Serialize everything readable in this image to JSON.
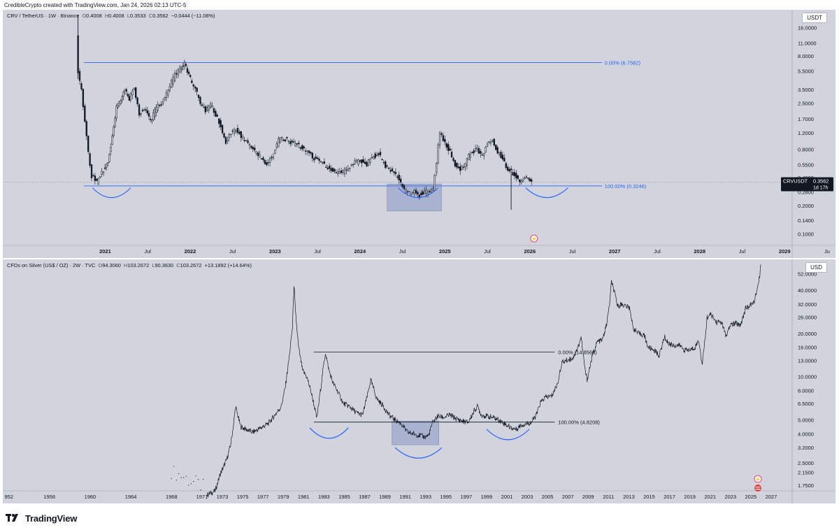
{
  "header": {
    "attribution": "CredibleCrypto created with TradingView.com, Jan 24, 2026 02:13 UTC-5"
  },
  "brand": {
    "name": "TradingView",
    "icon": "tradingview-logo-icon"
  },
  "colors": {
    "background": "#d1d4dc",
    "candles": "#131722",
    "fib_line_top": "#2962ff",
    "arc": "#2962ff",
    "box_fill": "#9ba8cc",
    "price_tag": "#131722"
  },
  "chart_data": [
    {
      "type": "candlestick",
      "symbol": "CRV / TetherUS · 1W · Binance",
      "ohlc": {
        "O": "0.4008",
        "H": "0.4008",
        "L": "0.3533",
        "C": "0.3562",
        "change": "−0.0444 (−11.08%)"
      },
      "currency": "USDT",
      "scale": "log",
      "y_ticks": [
        "16.0000",
        "11.0000",
        "8.0000",
        "5.5000",
        "3.5000",
        "2.5000",
        "1.7000",
        "1.2000",
        "0.8000",
        "0.5500",
        "0.4000",
        "0.2800",
        "0.2000",
        "0.1400",
        "0.1000"
      ],
      "x_ticks": [
        "2021",
        "Jul",
        "2022",
        "Jul",
        "2023",
        "Jul",
        "2024",
        "Jul",
        "2025",
        "Jul",
        "2026",
        "Jul",
        "2027",
        "Jul",
        "2028",
        "Jul",
        "2029",
        "Ju"
      ],
      "last_price": {
        "label": "CRVUSDT",
        "value": "0.3562",
        "countdown": "1d 17h"
      },
      "fib_levels": [
        {
          "label": "0.00% (6.7582)",
          "value": 6.7582
        },
        {
          "label": "100.00% (0.3246)",
          "value": 0.3246
        }
      ],
      "path": [
        [
          2020.68,
          14
        ],
        [
          2020.7,
          5.2
        ],
        [
          2020.74,
          3.5
        ],
        [
          2020.78,
          1.6
        ],
        [
          2020.82,
          0.75
        ],
        [
          2020.86,
          0.42
        ],
        [
          2020.92,
          0.35
        ],
        [
          2020.98,
          0.45
        ],
        [
          2021.05,
          0.6
        ],
        [
          2021.1,
          1.1
        ],
        [
          2021.15,
          2.3
        ],
        [
          2021.2,
          2.8
        ],
        [
          2021.25,
          3.4
        ],
        [
          2021.3,
          2.8
        ],
        [
          2021.36,
          3.5
        ],
        [
          2021.42,
          1.9
        ],
        [
          2021.48,
          2.2
        ],
        [
          2021.55,
          1.6
        ],
        [
          2021.62,
          2.2
        ],
        [
          2021.7,
          2.6
        ],
        [
          2021.78,
          3.8
        ],
        [
          2021.84,
          5.0
        ],
        [
          2021.9,
          6.0
        ],
        [
          2021.95,
          6.6
        ],
        [
          2022.02,
          4.5
        ],
        [
          2022.08,
          3.6
        ],
        [
          2022.14,
          2.5
        ],
        [
          2022.2,
          2.1
        ],
        [
          2022.26,
          2.4
        ],
        [
          2022.32,
          1.9
        ],
        [
          2022.38,
          1.4
        ],
        [
          2022.44,
          0.95
        ],
        [
          2022.5,
          1.2
        ],
        [
          2022.56,
          1.35
        ],
        [
          2022.62,
          1.1
        ],
        [
          2022.7,
          0.9
        ],
        [
          2022.78,
          0.75
        ],
        [
          2022.86,
          0.65
        ],
        [
          2022.92,
          0.55
        ],
        [
          2023.0,
          0.7
        ],
        [
          2023.06,
          1.0
        ],
        [
          2023.12,
          1.05
        ],
        [
          2023.2,
          0.95
        ],
        [
          2023.28,
          0.9
        ],
        [
          2023.36,
          0.8
        ],
        [
          2023.44,
          0.7
        ],
        [
          2023.52,
          0.6
        ],
        [
          2023.6,
          0.55
        ],
        [
          2023.66,
          0.5
        ],
        [
          2023.72,
          0.45
        ],
        [
          2023.8,
          0.45
        ],
        [
          2023.88,
          0.5
        ],
        [
          2023.96,
          0.58
        ],
        [
          2024.04,
          0.6
        ],
        [
          2024.1,
          0.56
        ],
        [
          2024.18,
          0.68
        ],
        [
          2024.24,
          0.72
        ],
        [
          2024.32,
          0.52
        ],
        [
          2024.4,
          0.48
        ],
        [
          2024.48,
          0.38
        ],
        [
          2024.54,
          0.29
        ],
        [
          2024.6,
          0.27
        ],
        [
          2024.66,
          0.28
        ],
        [
          2024.72,
          0.26
        ],
        [
          2024.78,
          0.28
        ],
        [
          2024.84,
          0.27
        ],
        [
          2024.88,
          0.3
        ],
        [
          2024.92,
          0.6
        ],
        [
          2024.96,
          1.2
        ],
        [
          2025.02,
          0.95
        ],
        [
          2025.08,
          0.75
        ],
        [
          2025.14,
          0.55
        ],
        [
          2025.2,
          0.48
        ],
        [
          2025.26,
          0.55
        ],
        [
          2025.32,
          0.75
        ],
        [
          2025.4,
          0.8
        ],
        [
          2025.46,
          0.7
        ],
        [
          2025.52,
          0.9
        ],
        [
          2025.58,
          1.0
        ],
        [
          2025.64,
          0.75
        ],
        [
          2025.7,
          0.62
        ],
        [
          2025.76,
          0.5
        ],
        [
          2025.8,
          0.48
        ],
        [
          2025.84,
          0.42
        ],
        [
          2025.88,
          0.38
        ],
        [
          2025.92,
          0.37
        ],
        [
          2025.96,
          0.4
        ],
        [
          2026.0,
          0.4
        ],
        [
          2026.04,
          0.3562
        ]
      ]
    },
    {
      "type": "line",
      "symbol": "CFDs on Silver (US$ / OZ) · 2W · TVC",
      "ohlc": {
        "O": "94.3060",
        "H": "103.2672",
        "L": "90.3630",
        "C": "103.2672",
        "change": "+13.1892 (+14.64%)"
      },
      "currency": "USD",
      "scale": "log",
      "y_ticks": [
        "52.0000",
        "40.0000",
        "32.0000",
        "26.0000",
        "20.0000",
        "16.0000",
        "13.0000",
        "10.0000",
        "8.0000",
        "6.5000",
        "5.0000",
        "4.0000",
        "3.2000",
        "2.5000",
        "2.1500",
        "1.7500"
      ],
      "x_ticks": [
        "952",
        "1956",
        "1960",
        "1964",
        "1968",
        "1971",
        "1973",
        "1975",
        "1977",
        "1979",
        "1981",
        "1983",
        "1985",
        "1987",
        "1989",
        "1991",
        "1993",
        "1995",
        "1997",
        "1999",
        "2001",
        "2003",
        "2005",
        "2007",
        "2009",
        "2011",
        "2013",
        "2015",
        "2017",
        "2019",
        "2021",
        "2023",
        "2025",
        "2027"
      ],
      "fib_levels": [
        {
          "label": "0.00% (14.8565)",
          "value": 14.8565
        },
        {
          "label": "100.00% (4.8208)",
          "value": 4.8208
        }
      ],
      "path": [
        [
          1971.5,
          1.5
        ],
        [
          1972.3,
          1.6
        ],
        [
          1972.8,
          2.1
        ],
        [
          1973.4,
          2.6
        ],
        [
          1973.8,
          3.3
        ],
        [
          1974.1,
          4.6
        ],
        [
          1974.3,
          6.2
        ],
        [
          1974.8,
          4.5
        ],
        [
          1975.3,
          4.3
        ],
        [
          1976.0,
          4.1
        ],
        [
          1976.8,
          4.4
        ],
        [
          1977.5,
          4.7
        ],
        [
          1978.0,
          5.2
        ],
        [
          1978.8,
          6.2
        ],
        [
          1979.2,
          8.5
        ],
        [
          1979.6,
          14
        ],
        [
          1979.9,
          22
        ],
        [
          1980.05,
          44
        ],
        [
          1980.2,
          28
        ],
        [
          1980.5,
          16
        ],
        [
          1980.9,
          11
        ],
        [
          1981.3,
          10
        ],
        [
          1981.7,
          8
        ],
        [
          1982.0,
          6.5
        ],
        [
          1982.3,
          5.1
        ],
        [
          1982.6,
          7.5
        ],
        [
          1982.9,
          11
        ],
        [
          1983.15,
          14.7
        ],
        [
          1983.5,
          11
        ],
        [
          1983.9,
          9
        ],
        [
          1984.4,
          7.8
        ],
        [
          1984.9,
          6.5
        ],
        [
          1985.5,
          6.2
        ],
        [
          1986.2,
          5.6
        ],
        [
          1986.8,
          5.4
        ],
        [
          1987.3,
          7.5
        ],
        [
          1987.6,
          9.5
        ],
        [
          1988.2,
          7
        ],
        [
          1988.8,
          6.3
        ],
        [
          1989.4,
          5.4
        ],
        [
          1990.0,
          5.0
        ],
        [
          1990.6,
          4.7
        ],
        [
          1991.2,
          4.1
        ],
        [
          1991.8,
          4.0
        ],
        [
          1992.4,
          3.9
        ],
        [
          1992.9,
          3.8
        ],
        [
          1993.3,
          3.9
        ],
        [
          1993.7,
          4.8
        ],
        [
          1994.2,
          5.3
        ],
        [
          1994.8,
          5.2
        ],
        [
          1995.4,
          5.4
        ],
        [
          1996.0,
          5.1
        ],
        [
          1996.6,
          4.9
        ],
        [
          1997.2,
          4.8
        ],
        [
          1997.8,
          5.8
        ],
        [
          1998.1,
          6.2
        ],
        [
          1998.5,
          5.4
        ],
        [
          1999.0,
          5.3
        ],
        [
          1999.6,
          5.2
        ],
        [
          2000.2,
          5.0
        ],
        [
          2000.8,
          4.7
        ],
        [
          2001.4,
          4.4
        ],
        [
          2001.9,
          4.3
        ],
        [
          2002.4,
          4.6
        ],
        [
          2002.9,
          4.7
        ],
        [
          2003.4,
          4.8
        ],
        [
          2003.9,
          5.4
        ],
        [
          2004.3,
          6.6
        ],
        [
          2004.8,
          7.2
        ],
        [
          2005.4,
          7.3
        ],
        [
          2006.0,
          9
        ],
        [
          2006.4,
          12.5
        ],
        [
          2006.9,
          13
        ],
        [
          2007.5,
          13.5
        ],
        [
          2008.0,
          16
        ],
        [
          2008.3,
          19
        ],
        [
          2008.7,
          11
        ],
        [
          2008.9,
          9.5
        ],
        [
          2009.4,
          14
        ],
        [
          2009.9,
          17.5
        ],
        [
          2010.4,
          18
        ],
        [
          2010.8,
          23
        ],
        [
          2011.1,
          32
        ],
        [
          2011.3,
          46
        ],
        [
          2011.6,
          38
        ],
        [
          2011.9,
          31
        ],
        [
          2012.3,
          32
        ],
        [
          2012.7,
          31
        ],
        [
          2013.1,
          30
        ],
        [
          2013.4,
          22
        ],
        [
          2013.9,
          20
        ],
        [
          2014.5,
          19.5
        ],
        [
          2014.9,
          16
        ],
        [
          2015.5,
          15.3
        ],
        [
          2016.0,
          14
        ],
        [
          2016.5,
          19
        ],
        [
          2016.9,
          17
        ],
        [
          2017.5,
          16.5
        ],
        [
          2018.0,
          16.5
        ],
        [
          2018.5,
          15.3
        ],
        [
          2019.0,
          15.3
        ],
        [
          2019.5,
          16
        ],
        [
          2019.9,
          18
        ],
        [
          2020.2,
          12
        ],
        [
          2020.5,
          18
        ],
        [
          2020.7,
          26
        ],
        [
          2021.1,
          27
        ],
        [
          2021.6,
          24
        ],
        [
          2022.1,
          24
        ],
        [
          2022.6,
          19
        ],
        [
          2023.0,
          23
        ],
        [
          2023.5,
          23.5
        ],
        [
          2024.0,
          23
        ],
        [
          2024.5,
          30
        ],
        [
          2024.9,
          31
        ],
        [
          2025.3,
          33
        ],
        [
          2025.7,
          42
        ],
        [
          2025.9,
          52
        ],
        [
          2026.05,
          100
        ]
      ]
    }
  ]
}
